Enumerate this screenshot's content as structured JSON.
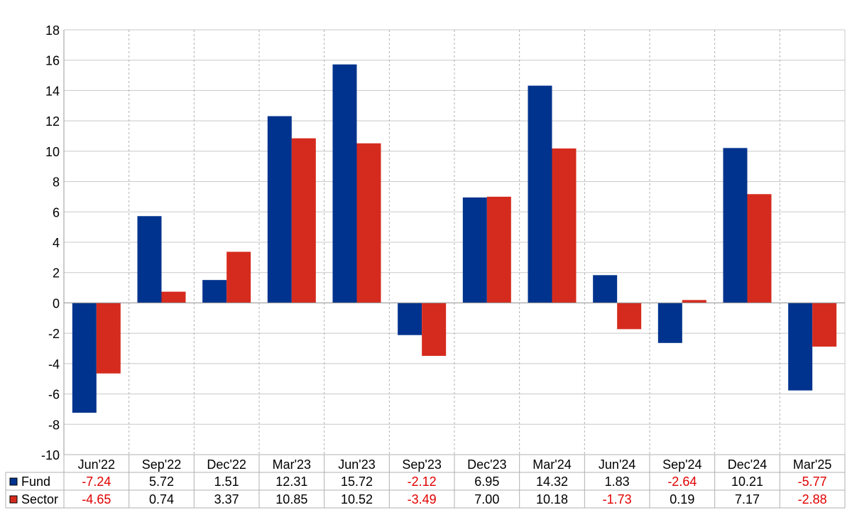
{
  "chart_data": {
    "type": "bar",
    "title": "",
    "xlabel": "",
    "ylabel": "",
    "ylim": [
      -10,
      18
    ],
    "yticks": [
      18,
      16,
      14,
      12,
      10,
      8,
      6,
      4,
      2,
      0,
      -2,
      -4,
      -6,
      -8,
      -10
    ],
    "grid": true,
    "legend": "table-below",
    "categories": [
      "Jun'22",
      "Sep'22",
      "Dec'22",
      "Mar'23",
      "Jun'23",
      "Sep'23",
      "Dec'23",
      "Mar'24",
      "Jun'24",
      "Sep'24",
      "Dec'24",
      "Mar'25"
    ],
    "series": [
      {
        "name": "Fund",
        "color": "#00338d",
        "values": [
          -7.24,
          5.72,
          1.51,
          12.31,
          15.72,
          -2.12,
          6.95,
          14.32,
          1.83,
          -2.64,
          10.21,
          -5.77
        ],
        "labels": [
          "-7.24",
          "5.72",
          "1.51",
          "12.31",
          "15.72",
          "-2.12",
          "6.95",
          "14.32",
          "1.83",
          "-2.64",
          "10.21",
          "-5.77"
        ]
      },
      {
        "name": "Sector",
        "color": "#d52b1e",
        "values": [
          -4.65,
          0.74,
          3.37,
          10.85,
          10.52,
          -3.49,
          7.0,
          10.18,
          -1.73,
          0.19,
          7.17,
          -2.88
        ],
        "labels": [
          "-4.65",
          "0.74",
          "3.37",
          "10.85",
          "10.52",
          "-3.49",
          "7.00",
          "10.18",
          "-1.73",
          "0.19",
          "7.17",
          "-2.88"
        ]
      }
    ],
    "negative_value_color": "#e00000"
  }
}
